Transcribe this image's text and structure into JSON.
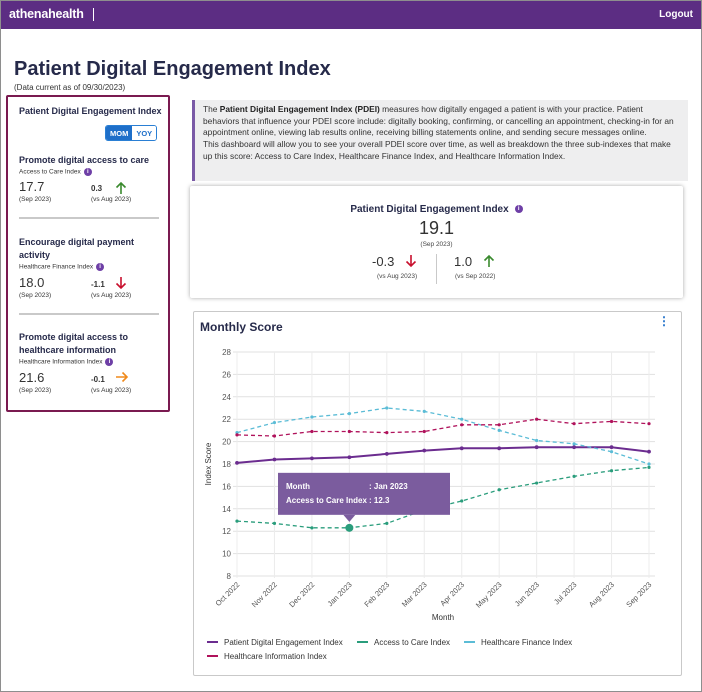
{
  "header": {
    "logo_text": "athenahealth",
    "logout_label": "Logout"
  },
  "page": {
    "title": "Patient Digital Engagement Index",
    "subtitle": "(Data current as of 09/30/2023)"
  },
  "sidebar": {
    "title": "Patient Digital Engagement Index",
    "toggle": {
      "mom_label": "MOM",
      "yoy_label": "YOY",
      "selected": "MOM"
    },
    "metrics": [
      {
        "title": "Promote digital access to care",
        "subindex": "Access to Care Index",
        "value": "17.7",
        "date": "(Sep 2023)",
        "delta": "0.3",
        "vs": "(vs Aug 2023)",
        "direction": "up",
        "arrow_color": "#3a8a2e"
      },
      {
        "title": "Encourage digital payment activity",
        "subindex": "Healthcare Finance Index",
        "value": "18.0",
        "date": "(Sep 2023)",
        "delta": "-1.1",
        "vs": "(vs Aug 2023)",
        "direction": "down",
        "arrow_color": "#c8102e"
      },
      {
        "title": "Promote digital access to healthcare information",
        "subindex": "Healthcare Information Index",
        "value": "21.6",
        "date": "(Sep 2023)",
        "delta": "-0.1",
        "vs": "(vs Aug 2023)",
        "direction": "right",
        "arrow_color": "#f08a1c"
      }
    ]
  },
  "description": {
    "intro": "The ",
    "bold": "Patient Digital Engagement Index (PDEI)",
    "rest": " measures how digitally engaged a patient is with your practice. Patient behaviors that influence your PDEI score include: digitally booking, confirming, or cancelling an appointment, checking-in for an appointment online, viewing lab results online, receiving billing statements online, and sending secure messages online.",
    "line2": "This dashboard will allow you to see your overall PDEI score over time, as well as breakdown the three sub-indexes that make up this score: Access to Care Index, Healthcare Finance Index, and Healthcare Information Index."
  },
  "score_card": {
    "title": "Patient Digital Engagement Index",
    "value": "19.1",
    "date": "(Sep 2023)",
    "mom_delta": "-0.3",
    "mom_vs": "(vs Aug 2023)",
    "mom_color": "#c8102e",
    "yoy_delta": "1.0",
    "yoy_vs": "(vs Sep 2022)",
    "yoy_color": "#3a8a2e"
  },
  "chart_card": {
    "title": "Monthly Score"
  },
  "tooltip": {
    "month_label": "Month",
    "month_value": ": Jan 2023",
    "index_label": "Access to Care Index",
    "index_value": ": 12.3",
    "bg": "#7b5c9e"
  },
  "chart_data": {
    "type": "line",
    "x": [
      "Oct 2022",
      "Nov 2022",
      "Dec 2022",
      "Jan 2023",
      "Feb 2023",
      "Mar 2023",
      "Apr 2023",
      "May 2023",
      "Jun 2023",
      "Jul 2023",
      "Aug 2023",
      "Sep 2023"
    ],
    "xlabel": "Month",
    "ylabel": "Index Score",
    "ylim": [
      8,
      28
    ],
    "yticks": [
      8,
      10,
      12,
      14,
      16,
      18,
      20,
      22,
      24,
      26,
      28
    ],
    "grid": true,
    "legend_position": "bottom",
    "highlight": {
      "series": "Access to Care Index",
      "x": "Jan 2023",
      "y": 12.3
    },
    "series": [
      {
        "name": "Patient Digital Engagement Index",
        "color": "#6b2c8f",
        "style": "solid",
        "values": [
          18.1,
          18.4,
          18.5,
          18.6,
          18.9,
          19.2,
          19.4,
          19.4,
          19.5,
          19.5,
          19.5,
          19.1
        ]
      },
      {
        "name": "Access to Care Index",
        "color": "#2a9d7c",
        "style": "dashed",
        "values": [
          12.9,
          12.7,
          12.3,
          12.3,
          12.7,
          13.9,
          14.7,
          15.7,
          16.3,
          16.9,
          17.4,
          17.7
        ]
      },
      {
        "name": "Healthcare Finance Index",
        "color": "#5bbcd6",
        "style": "dashed",
        "values": [
          20.8,
          21.7,
          22.2,
          22.5,
          23.0,
          22.7,
          22.0,
          21.0,
          20.1,
          19.8,
          19.1,
          18.0
        ]
      },
      {
        "name": "Healthcare Information Index",
        "color": "#b0125b",
        "style": "dashed",
        "values": [
          20.6,
          20.5,
          20.9,
          20.9,
          20.8,
          20.9,
          21.5,
          21.5,
          22.0,
          21.6,
          21.8,
          21.6
        ]
      }
    ]
  }
}
